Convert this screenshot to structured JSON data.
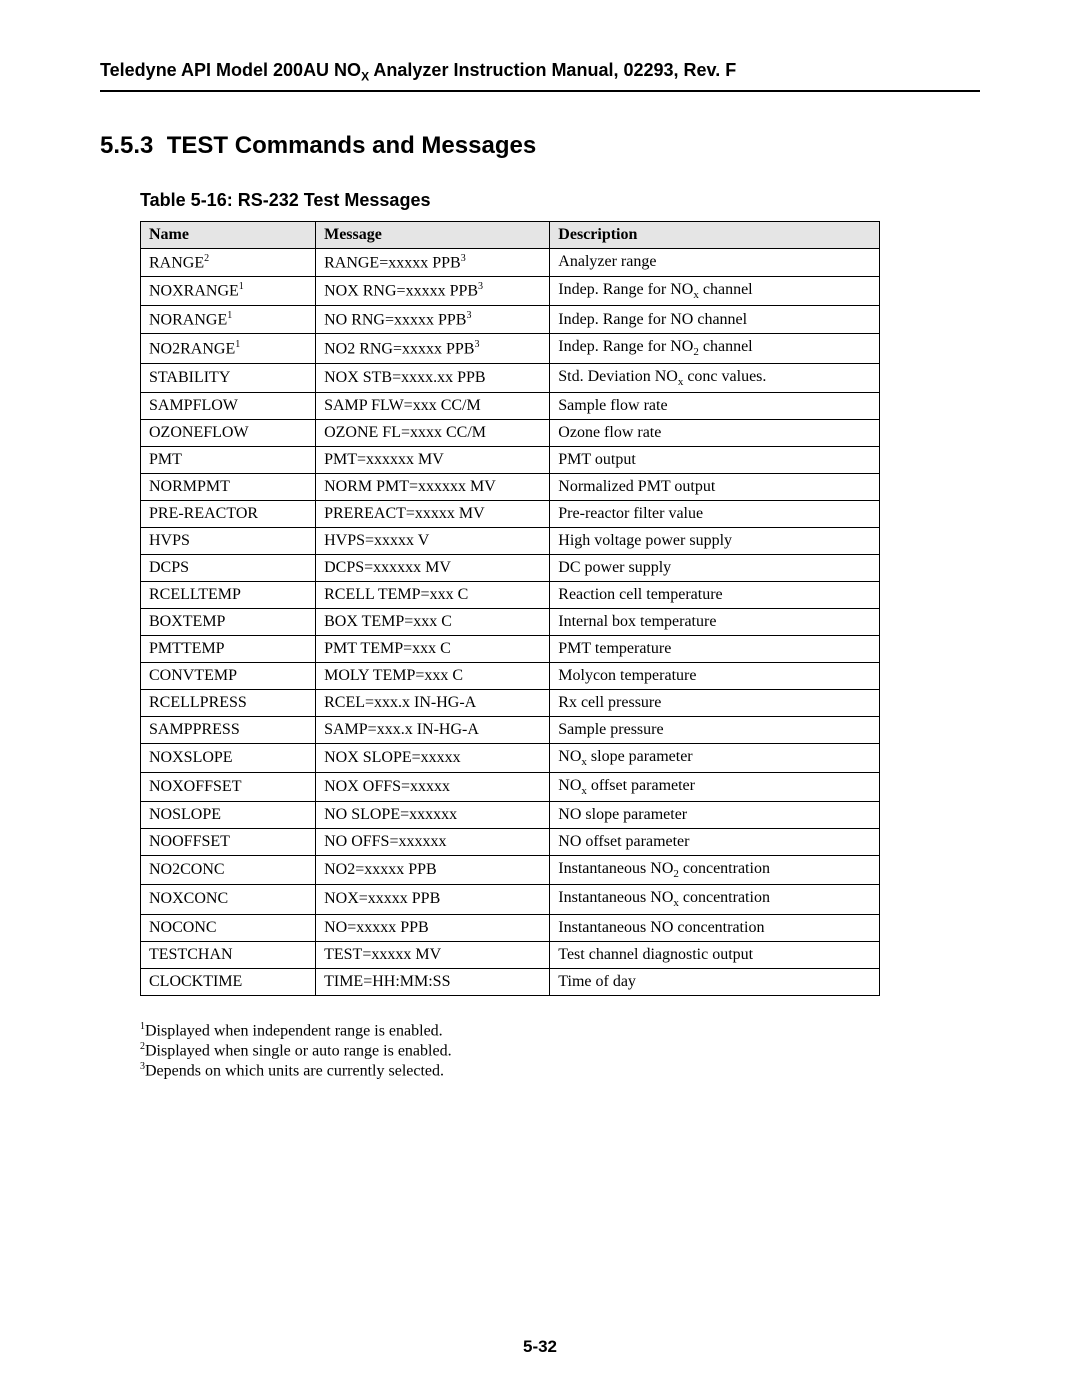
{
  "header": {
    "pre": "Teledyne API Model 200AU NO",
    "sub": "X",
    "post": " Analyzer Instruction Manual, 02293, Rev. F"
  },
  "section": {
    "number": "5.5.3",
    "title": "TEST Commands and Messages"
  },
  "tableCaption": "Table 5-16:  RS-232 Test Messages",
  "columns": [
    "Name",
    "Message",
    "Description"
  ],
  "rows": [
    {
      "name": "RANGE",
      "nameSup": "2",
      "message": "RANGE=xxxxx PPB",
      "messageSup": "3",
      "description": "Analyzer range"
    },
    {
      "name": "NOXRANGE",
      "nameSup": "1",
      "message": "NOX RNG=xxxxx PPB",
      "messageSup": "3",
      "description": "Indep. Range for NO",
      "descSub": "x",
      "descPost": " channel"
    },
    {
      "name": "NORANGE",
      "nameSup": "1",
      "message": "NO RNG=xxxxx PPB",
      "messageSup": "3",
      "description": "Indep. Range for NO channel"
    },
    {
      "name": "NO2RANGE",
      "nameSup": "1",
      "message": "NO2 RNG=xxxxx PPB",
      "messageSup": "3",
      "description": "Indep. Range for NO",
      "descSub": "2",
      "descPost": " channel"
    },
    {
      "name": "STABILITY",
      "message": "NOX STB=xxxx.xx PPB",
      "description": "Std. Deviation NO",
      "descSub": "x",
      "descPost": " conc values."
    },
    {
      "name": "SAMPFLOW",
      "message": "SAMP FLW=xxx CC/M",
      "description": "Sample flow rate"
    },
    {
      "name": "OZONEFLOW",
      "message": "OZONE FL=xxxx CC/M",
      "description": "Ozone flow rate"
    },
    {
      "name": "PMT",
      "message": "PMT=xxxxxx MV",
      "description": "PMT output"
    },
    {
      "name": "NORMPMT",
      "message": "NORM PMT=xxxxxx MV",
      "description": "Normalized PMT output"
    },
    {
      "name": "PRE-REACTOR",
      "message": "PREREACT=xxxxx MV",
      "description": "Pre-reactor filter value"
    },
    {
      "name": "HVPS",
      "message": "HVPS=xxxxx V",
      "description": "High voltage power supply"
    },
    {
      "name": "DCPS",
      "message": "DCPS=xxxxxx MV",
      "description": "DC power supply"
    },
    {
      "name": "RCELLTEMP",
      "message": "RCELL TEMP=xxx C",
      "description": "Reaction cell temperature"
    },
    {
      "name": "BOXTEMP",
      "message": "BOX TEMP=xxx C",
      "description": "Internal box temperature"
    },
    {
      "name": "PMTTEMP",
      "message": "PMT TEMP=xxx C",
      "description": "PMT temperature"
    },
    {
      "name": "CONVTEMP",
      "message": "MOLY TEMP=xxx C",
      "description": "Molycon temperature"
    },
    {
      "name": "RCELLPRESS",
      "message": "RCEL=xxx.x IN-HG-A",
      "description": "Rx cell pressure"
    },
    {
      "name": "SAMPPRESS",
      "message": "SAMP=xxx.x IN-HG-A",
      "description": "Sample pressure"
    },
    {
      "name": "NOXSLOPE",
      "message": "NOX SLOPE=xxxxx",
      "description": "NO",
      "descSub": "x",
      "descPost": " slope parameter"
    },
    {
      "name": "NOXOFFSET",
      "message": "NOX OFFS=xxxxx",
      "description": "NO",
      "descSub": "x",
      "descPost": " offset parameter"
    },
    {
      "name": "NOSLOPE",
      "message": "NO SLOPE=xxxxxx",
      "description": "NO slope parameter"
    },
    {
      "name": "NOOFFSET",
      "message": "NO OFFS=xxxxxx",
      "description": "NO offset parameter"
    },
    {
      "name": "NO2CONC",
      "message": "NO2=xxxxx PPB",
      "description": "Instantaneous NO",
      "descSub": "2",
      "descPost": " concentration"
    },
    {
      "name": "NOXCONC",
      "message": "NOX=xxxxx PPB",
      "description": "Instantaneous NO",
      "descSub": "x",
      "descPost": " concentration"
    },
    {
      "name": "NOCONC",
      "message": "NO=xxxxx PPB",
      "description": "Instantaneous NO concentration"
    },
    {
      "name": "TESTCHAN",
      "message": "TEST=xxxxx MV",
      "description": "Test channel diagnostic output"
    },
    {
      "name": "CLOCKTIME",
      "message": "TIME=HH:MM:SS",
      "description": "Time of day"
    }
  ],
  "footnotes": [
    {
      "sup": "1",
      "text": "Displayed when independent range is enabled."
    },
    {
      "sup": "2",
      "text": "Displayed when single or auto range is enabled."
    },
    {
      "sup": "3",
      "text": "Depends on which units are currently selected."
    }
  ],
  "pageNumber": "5-32"
}
